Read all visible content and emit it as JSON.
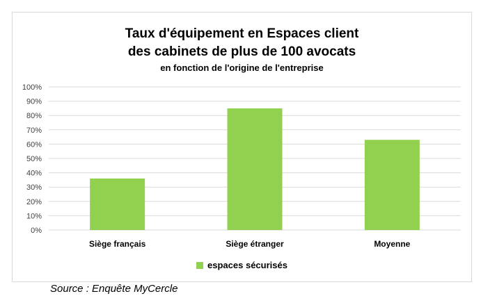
{
  "chart_data": {
    "type": "bar",
    "title": [
      "Taux d'équipement en Espaces client",
      "des cabinets de plus de 100 avocats"
    ],
    "subtitle": "en fonction de l'origine de l'entreprise",
    "categories": [
      "Siège français",
      "Siège étranger",
      "Moyenne"
    ],
    "series": [
      {
        "name": "espaces sécurisés",
        "values": [
          36,
          85,
          63
        ],
        "color": "#92d050"
      }
    ],
    "ylim": [
      0,
      100
    ],
    "yticks": [
      0,
      10,
      20,
      30,
      40,
      50,
      60,
      70,
      80,
      90,
      100
    ],
    "ytick_labels": [
      "0%",
      "10%",
      "20%",
      "30%",
      "40%",
      "50%",
      "60%",
      "70%",
      "80%",
      "90%",
      "100%"
    ],
    "y_unit": "%",
    "grid": true,
    "legend_position": "bottom",
    "xlabel": "",
    "ylabel": ""
  },
  "source": "Source : Enquête MyCercle",
  "colors": {
    "bar": "#92d050",
    "grid": "#d9d9d9",
    "frame": "#d9d9d9"
  }
}
